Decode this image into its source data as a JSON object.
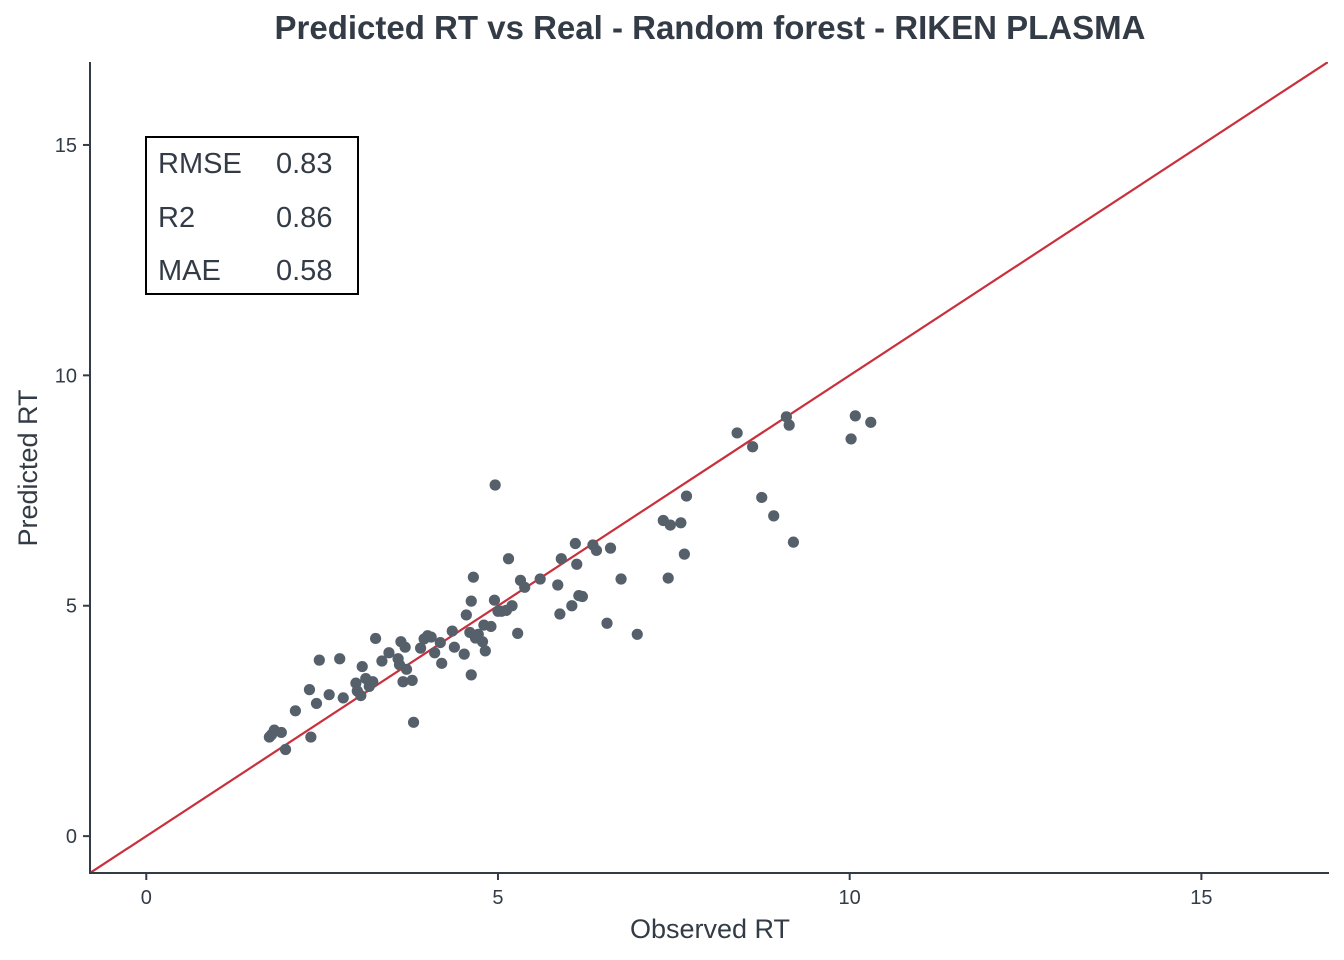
{
  "chart_data": {
    "type": "scatter",
    "title": "Predicted RT vs Real - Random forest - RIKEN PLASMA",
    "xlabel": "Observed RT",
    "ylabel": "Predicted RT",
    "xlim": [
      -0.8,
      16.8
    ],
    "ylim": [
      -0.8,
      16.8
    ],
    "x_ticks": [
      "0",
      "5",
      "10",
      "15"
    ],
    "y_ticks": [
      "0",
      "5",
      "10",
      "15"
    ],
    "grid": false,
    "reference_line": {
      "type": "identity",
      "slope": 1,
      "intercept": 0,
      "color": "#c9303c"
    },
    "point_color": "#56606b",
    "stats": [
      {
        "label": "RMSE",
        "value": "0.83"
      },
      {
        "label": "R2",
        "value": "0.86"
      },
      {
        "label": "MAE",
        "value": "0.58"
      }
    ],
    "points": [
      [
        1.75,
        2.15
      ],
      [
        1.78,
        2.2
      ],
      [
        1.82,
        2.3
      ],
      [
        1.92,
        2.25
      ],
      [
        1.98,
        1.88
      ],
      [
        2.12,
        2.72
      ],
      [
        2.32,
        3.18
      ],
      [
        2.34,
        2.15
      ],
      [
        2.42,
        2.88
      ],
      [
        2.46,
        3.82
      ],
      [
        2.6,
        3.07
      ],
      [
        2.75,
        3.85
      ],
      [
        2.8,
        3.0
      ],
      [
        2.98,
        3.32
      ],
      [
        3.0,
        3.15
      ],
      [
        3.05,
        3.05
      ],
      [
        3.07,
        3.68
      ],
      [
        3.12,
        3.42
      ],
      [
        3.17,
        3.25
      ],
      [
        3.22,
        3.35
      ],
      [
        3.26,
        4.29
      ],
      [
        3.35,
        3.8
      ],
      [
        3.45,
        3.98
      ],
      [
        3.58,
        3.85
      ],
      [
        3.6,
        3.72
      ],
      [
        3.62,
        4.22
      ],
      [
        3.65,
        3.35
      ],
      [
        3.68,
        4.1
      ],
      [
        3.7,
        3.62
      ],
      [
        3.78,
        3.38
      ],
      [
        3.8,
        2.47
      ],
      [
        3.9,
        4.08
      ],
      [
        3.95,
        4.28
      ],
      [
        4.0,
        4.35
      ],
      [
        4.05,
        4.32
      ],
      [
        4.1,
        3.98
      ],
      [
        4.18,
        4.2
      ],
      [
        4.2,
        3.75
      ],
      [
        4.35,
        4.45
      ],
      [
        4.38,
        4.1
      ],
      [
        4.52,
        3.95
      ],
      [
        4.55,
        4.8
      ],
      [
        4.6,
        4.42
      ],
      [
        4.62,
        5.1
      ],
      [
        4.62,
        3.5
      ],
      [
        4.65,
        5.62
      ],
      [
        4.68,
        4.3
      ],
      [
        4.72,
        4.38
      ],
      [
        4.78,
        4.22
      ],
      [
        4.8,
        4.58
      ],
      [
        4.82,
        4.02
      ],
      [
        4.9,
        4.55
      ],
      [
        4.95,
        5.12
      ],
      [
        4.96,
        7.62
      ],
      [
        5.0,
        4.88
      ],
      [
        5.05,
        4.88
      ],
      [
        5.12,
        4.9
      ],
      [
        5.15,
        6.02
      ],
      [
        5.2,
        5.0
      ],
      [
        5.28,
        4.4
      ],
      [
        5.32,
        5.55
      ],
      [
        5.38,
        5.4
      ],
      [
        5.6,
        5.58
      ],
      [
        5.85,
        5.45
      ],
      [
        5.88,
        4.82
      ],
      [
        5.9,
        6.02
      ],
      [
        6.05,
        5.0
      ],
      [
        6.1,
        6.35
      ],
      [
        6.12,
        5.9
      ],
      [
        6.15,
        5.22
      ],
      [
        6.2,
        5.2
      ],
      [
        6.35,
        6.32
      ],
      [
        6.4,
        6.2
      ],
      [
        6.55,
        4.62
      ],
      [
        6.6,
        6.25
      ],
      [
        6.75,
        5.58
      ],
      [
        6.98,
        4.38
      ],
      [
        7.35,
        6.85
      ],
      [
        7.42,
        5.6
      ],
      [
        7.45,
        6.75
      ],
      [
        7.6,
        6.8
      ],
      [
        7.65,
        6.12
      ],
      [
        7.68,
        7.38
      ],
      [
        8.4,
        8.75
      ],
      [
        8.62,
        8.45
      ],
      [
        8.75,
        7.35
      ],
      [
        8.92,
        6.95
      ],
      [
        9.1,
        9.1
      ],
      [
        9.14,
        8.92
      ],
      [
        9.2,
        6.38
      ],
      [
        10.02,
        8.62
      ],
      [
        10.08,
        9.12
      ],
      [
        10.3,
        8.98
      ]
    ]
  }
}
